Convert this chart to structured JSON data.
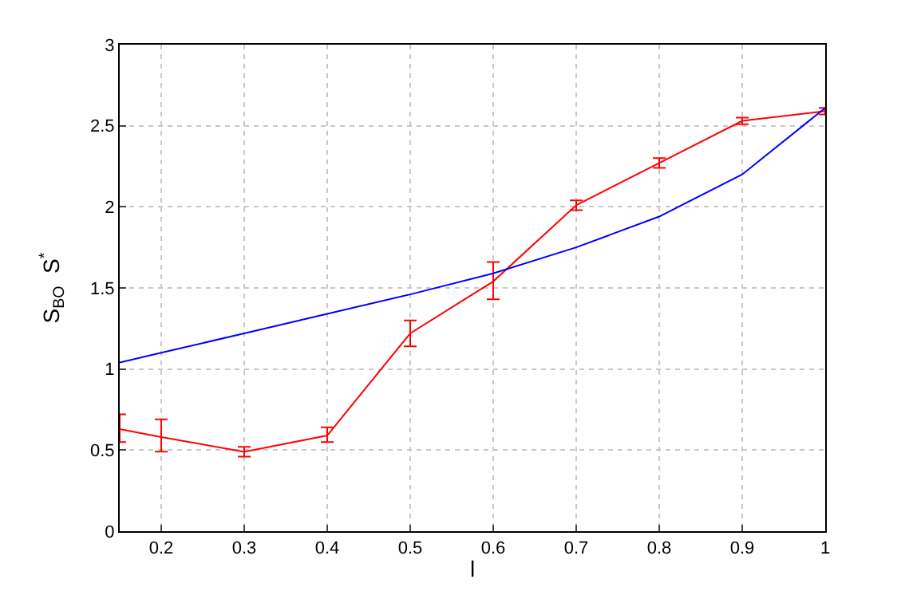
{
  "chart_data": {
    "type": "line",
    "xlabel": "l",
    "ylabel": "S$_{BO}$  S$^{*}$",
    "x": [
      0.15,
      0.2,
      0.3,
      0.4,
      0.5,
      0.6,
      0.7,
      0.8,
      0.9,
      1
    ],
    "series": [
      {
        "color": "#ff0000",
        "values": [
          0.63,
          0.58,
          0.49,
          0.59,
          1.22,
          1.54,
          2.01,
          2.27,
          2.53,
          2.59
        ],
        "errors": [
          [
            0.55,
            0.72
          ],
          [
            0.49,
            0.69
          ],
          [
            0.46,
            0.52
          ],
          [
            0.55,
            0.64
          ],
          [
            1.14,
            1.3
          ],
          [
            1.43,
            1.66
          ],
          [
            1.98,
            2.04
          ],
          [
            2.24,
            2.3
          ],
          [
            2.51,
            2.55
          ],
          [
            2.57,
            2.61
          ]
        ]
      },
      {
        "color": "#0000ff",
        "values": [
          1.04,
          1.1,
          1.22,
          1.34,
          1.46,
          1.59,
          1.75,
          1.94,
          2.2,
          2.61
        ]
      }
    ],
    "xlim": [
      0.15,
      1
    ],
    "xticks": [
      0.2,
      0.3,
      0.4,
      0.5,
      0.6,
      0.7,
      0.8,
      0.9,
      1
    ],
    "ylim": [
      0,
      3
    ],
    "yticks": [
      0,
      0.5,
      1,
      1.5,
      2,
      2.5,
      3
    ],
    "grid": true,
    "marker": "none",
    "line_style": "solid"
  }
}
